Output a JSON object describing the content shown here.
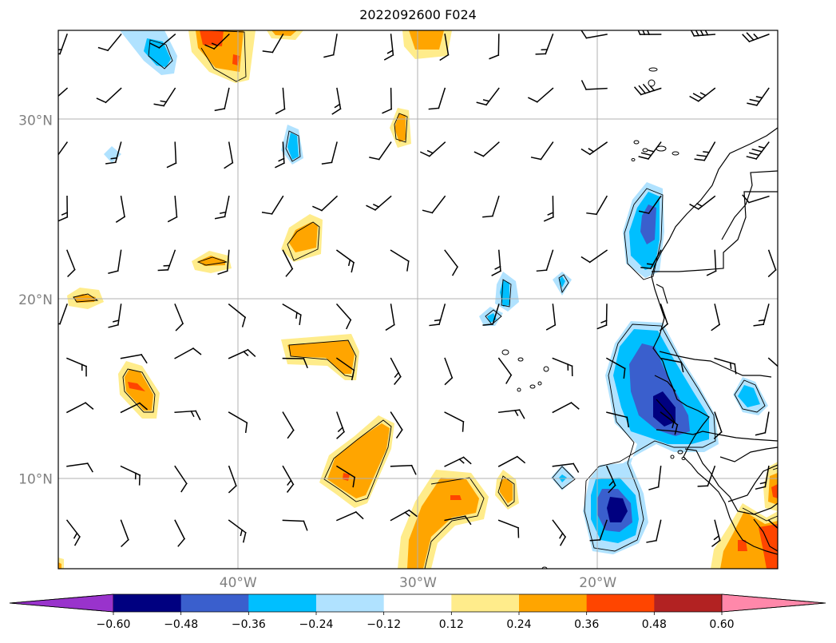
{
  "title": "2022092600 F024",
  "map": {
    "lon_range": [
      -50,
      -10
    ],
    "lat_range": [
      5,
      35
    ],
    "lat_labels": [
      {
        "lat": 30,
        "text": "30°N"
      },
      {
        "lat": 20,
        "text": "20°N"
      },
      {
        "lat": 10,
        "text": "10°N"
      }
    ],
    "lon_labels": [
      {
        "lon": -40,
        "text": "40°W"
      },
      {
        "lon": -30,
        "text": "30°W"
      },
      {
        "lon": -20,
        "text": "20°W"
      }
    ],
    "gridlines": true,
    "wind_barbs": true
  },
  "colorbar": {
    "colors": [
      "#9933cc",
      "#000080",
      "#3a5fcd",
      "#00bfff",
      "#b0e2ff",
      "#ffffff",
      "#ffec8b",
      "#ffa500",
      "#ff4500",
      "#b22222",
      "#ff88aa"
    ],
    "tick_labels": [
      "−0.60",
      "−0.48",
      "−0.36",
      "−0.24",
      "−0.12",
      "0.12",
      "0.24",
      "0.36",
      "0.48",
      "0.60"
    ],
    "extend": "both"
  }
}
